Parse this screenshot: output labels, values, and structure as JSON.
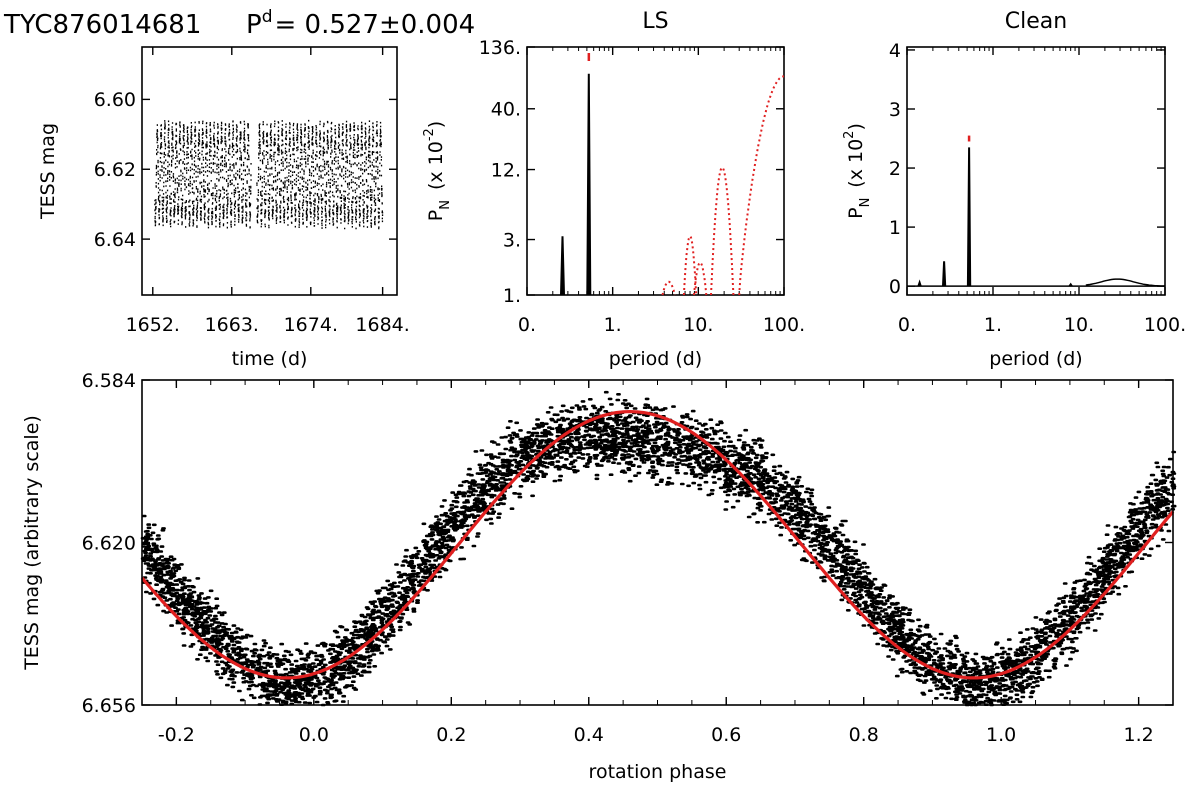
{
  "header": {
    "star_id": "TYC876014681",
    "period_label": "P",
    "period_sup": "d",
    "period_value": "= 0.527±0.004"
  },
  "chart_data": [
    {
      "id": "lightcurve",
      "type": "scatter",
      "title": "",
      "xlabel": "time (d)",
      "ylabel": "TESS mag",
      "xlim": [
        1650.5,
        1686.0
      ],
      "ylim": [
        6.656,
        6.585
      ],
      "y_inverted": true,
      "x_ticks": [
        "1652.",
        "1663.",
        "1674.",
        "1684."
      ],
      "x_tick_values": [
        1652,
        1663,
        1674,
        1684
      ],
      "y_ticks": [
        "6.60",
        "6.62",
        "6.64"
      ],
      "y_tick_values": [
        6.6,
        6.62,
        6.64
      ],
      "data_span": [
        1652.2,
        1683.9
      ],
      "gap": [
        1665.6,
        1666.4
      ],
      "mean_mag": 6.6215,
      "amplitude_mag": 0.0125,
      "period_d": 0.527,
      "color": "#000000"
    },
    {
      "id": "ls",
      "type": "line",
      "title": "LS",
      "xlabel": "period (d)",
      "ylabel": "P",
      "ylabel_sub": "N",
      "ylabel_units": "(x 10",
      "ylabel_exp": "-2",
      "x_scale": "log",
      "y_scale": "log",
      "xlim": [
        0.1,
        100
      ],
      "ylim": [
        1,
        136
      ],
      "x_ticks": [
        "0.",
        "1.",
        "10.",
        "100."
      ],
      "x_tick_values": [
        0.1,
        1,
        10,
        100
      ],
      "y_ticks": [
        "1.",
        "3.",
        "12.",
        "40.",
        "136."
      ],
      "y_tick_values": [
        1,
        3,
        12,
        40,
        136
      ],
      "series": [
        {
          "color": "#000000",
          "style": "solid",
          "peaks": [
            {
              "x": 0.26,
              "y": 3.2
            },
            {
              "x": 0.527,
              "y": 80
            }
          ]
        },
        {
          "color": "#e02020",
          "style": "dotted",
          "peaks": [
            {
              "x": 4.5,
              "y": 1.3
            },
            {
              "x": 8.0,
              "y": 3.2
            },
            {
              "x": 10.5,
              "y": 1.9
            },
            {
              "x": 19.0,
              "y": 12.5
            },
            {
              "x": 100,
              "y": 76
            }
          ]
        }
      ],
      "marker": {
        "x": 0.527,
        "color": "#e02020"
      }
    },
    {
      "id": "clean",
      "type": "line",
      "title": "Clean",
      "xlabel": "period (d)",
      "ylabel": "P",
      "ylabel_sub": "N",
      "ylabel_units": "(x 10",
      "ylabel_exp": "2",
      "x_scale": "log",
      "xlim": [
        0.1,
        100
      ],
      "ylim": [
        -0.15,
        4.05
      ],
      "x_ticks": [
        "0.",
        "1.",
        "10.",
        "100."
      ],
      "x_tick_values": [
        0.1,
        1,
        10,
        100
      ],
      "y_ticks": [
        "0",
        "1",
        "2",
        "3",
        "4"
      ],
      "y_tick_values": [
        0,
        1,
        2,
        3,
        4
      ],
      "series": [
        {
          "color": "#000000",
          "style": "solid",
          "peaks": [
            {
              "x": 0.14,
              "y": 0.06
            },
            {
              "x": 0.27,
              "y": 0.42
            },
            {
              "x": 0.527,
              "y": 2.35
            },
            {
              "x": 8.0,
              "y": 0.03
            }
          ],
          "bump": {
            "from": 12,
            "to": 100,
            "peak_x": 28,
            "peak_y": 0.12
          }
        }
      ],
      "marker": {
        "x": 0.527,
        "color": "#e02020"
      }
    },
    {
      "id": "phased",
      "type": "scatter",
      "title": "",
      "xlabel": "rotation phase",
      "ylabel": "TESS mag (arbitrary scale)",
      "xlim": [
        -0.25,
        1.25
      ],
      "ylim": [
        6.656,
        6.584
      ],
      "y_inverted": true,
      "x_ticks": [
        "-0.2",
        "0.0",
        "0.2",
        "0.4",
        "0.6",
        "0.8",
        "1.0",
        "1.2"
      ],
      "x_tick_values": [
        -0.2,
        0.0,
        0.2,
        0.4,
        0.6,
        0.8,
        1.0,
        1.2
      ],
      "y_ticks": [
        "6.584",
        "6.620",
        "6.656"
      ],
      "y_tick_values": [
        6.584,
        6.62,
        6.656
      ],
      "points_color": "#000000",
      "model": {
        "color": "#e02020",
        "mean_mag": 6.6205,
        "amplitude_mag": 0.0295,
        "min_light_phase": -0.04,
        "max_light_phase": 0.46
      }
    }
  ]
}
